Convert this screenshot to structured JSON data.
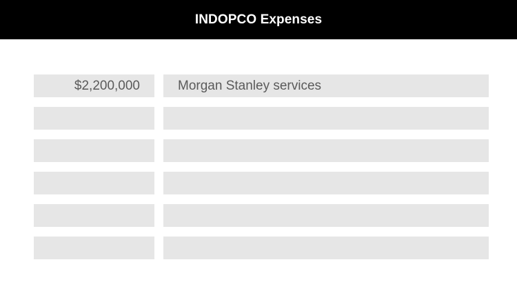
{
  "header": {
    "title": "INDOPCO Expenses"
  },
  "expenses": [
    {
      "amount": "$2,200,000",
      "description": "Morgan Stanley services"
    },
    {
      "amount": "",
      "description": ""
    },
    {
      "amount": "",
      "description": ""
    },
    {
      "amount": "",
      "description": ""
    },
    {
      "amount": "",
      "description": ""
    },
    {
      "amount": "",
      "description": ""
    }
  ],
  "colors": {
    "header_bg": "#000000",
    "header_text": "#ffffff",
    "cell_bg": "#e6e6e6",
    "cell_text": "#5a5a5a"
  }
}
